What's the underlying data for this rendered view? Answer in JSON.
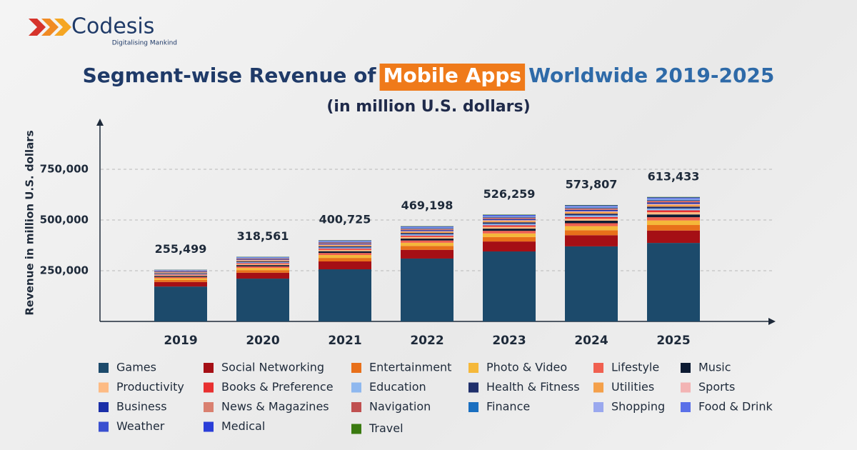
{
  "logo": {
    "name": "Codesis",
    "tagline": "Digitalising Mankind"
  },
  "chart_data": {
    "type": "stacked_bar",
    "title_parts": [
      "Segment-wise Revenue of",
      "Mobile Apps",
      "Worldwide 2019-2025"
    ],
    "subtitle": "(in million U.S. dollars)",
    "y_label": "Revenue in million U.S. dollars",
    "categories": [
      "2019",
      "2020",
      "2021",
      "2022",
      "2023",
      "2024",
      "2025"
    ],
    "ylim": [
      0,
      980000
    ],
    "yticks": [
      {
        "value": 250000,
        "label": "250,000"
      },
      {
        "value": 500000,
        "label": "500,000"
      },
      {
        "value": 750000,
        "label": "750,000"
      }
    ],
    "grid": true,
    "totals": {
      "values": [
        255499,
        318561,
        400725,
        469198,
        526259,
        573807,
        613433
      ],
      "value_labels": [
        "255,499",
        "318,561",
        "400,725",
        "469,198",
        "526,259",
        "573,807",
        "613,433"
      ]
    },
    "series": [
      {
        "name": "Games",
        "color": "#1c4a6b",
        "values": [
          172000,
          211000,
          257000,
          310000,
          345000,
          370000,
          387000
        ]
      },
      {
        "name": "Social Networking",
        "color": "#a50f15",
        "values": [
          22500,
          29000,
          38800,
          43000,
          49000,
          55000,
          61100
        ]
      },
      {
        "name": "Entertainment",
        "color": "#e8701a",
        "values": [
          10000,
          12900,
          17200,
          19100,
          21800,
          24500,
          27200
        ]
      },
      {
        "name": "Photo & Video",
        "color": "#f5b83a",
        "values": [
          8400,
          10800,
          14400,
          15900,
          18100,
          20400,
          22600
        ]
      },
      {
        "name": "Lifestyle",
        "color": "#f06050",
        "values": [
          5800,
          7500,
          10100,
          11100,
          12700,
          14300,
          15800
        ]
      },
      {
        "name": "Music",
        "color": "#0d1b33",
        "values": [
          5000,
          6500,
          8600,
          9600,
          10900,
          12200,
          13600
        ]
      },
      {
        "name": "Productivity",
        "color": "#fdbb84",
        "values": [
          4200,
          5400,
          7200,
          8000,
          9100,
          10200,
          11300
        ]
      },
      {
        "name": "Books & Preference",
        "color": "#e83030",
        "values": [
          3300,
          4300,
          5700,
          6400,
          7300,
          8200,
          9100
        ]
      },
      {
        "name": "Education",
        "color": "#8fb8ef",
        "values": [
          3300,
          4300,
          5700,
          6400,
          7300,
          8200,
          9100
        ]
      },
      {
        "name": "Health & Fitness",
        "color": "#1f2f6b",
        "values": [
          3300,
          4300,
          5700,
          6400,
          7300,
          8200,
          9100
        ]
      },
      {
        "name": "Utilities",
        "color": "#f4a04a",
        "values": [
          3300,
          4300,
          5700,
          6400,
          7300,
          8200,
          9100
        ]
      },
      {
        "name": "Sports",
        "color": "#f3b4b4",
        "values": [
          1700,
          2200,
          2900,
          3200,
          3600,
          4100,
          4500
        ]
      },
      {
        "name": "Business",
        "color": "#1b2fa8",
        "values": [
          2500,
          3200,
          4300,
          4800,
          5400,
          6100,
          6800
        ]
      },
      {
        "name": "News & Magazines",
        "color": "#d98070",
        "values": [
          1700,
          2200,
          2900,
          3200,
          3600,
          4100,
          4500
        ]
      },
      {
        "name": "Navigation",
        "color": "#c05050",
        "values": [
          1700,
          2200,
          2900,
          3200,
          3600,
          4100,
          4500
        ]
      },
      {
        "name": "Finance",
        "color": "#1a6fc0",
        "values": [
          1700,
          2200,
          2900,
          3200,
          3600,
          4100,
          4500
        ]
      },
      {
        "name": "Shopping",
        "color": "#9aa8ee",
        "values": [
          1700,
          2200,
          2900,
          3200,
          3600,
          4100,
          4500
        ]
      },
      {
        "name": "Food & Drink",
        "color": "#5a70e8",
        "values": [
          800,
          1100,
          1400,
          1600,
          1800,
          2000,
          2300
        ]
      },
      {
        "name": "Weather",
        "color": "#3a50d0",
        "values": [
          800,
          1100,
          1400,
          1600,
          1800,
          2000,
          2300
        ]
      },
      {
        "name": "Medical",
        "color": "#2a3ed8",
        "values": [
          800,
          1100,
          1400,
          1600,
          1800,
          2000,
          2300
        ]
      },
      {
        "name": "Travel",
        "color": "#3a7a10",
        "values": [
          800,
          1100,
          1400,
          1600,
          1800,
          2000,
          2300
        ]
      }
    ]
  }
}
